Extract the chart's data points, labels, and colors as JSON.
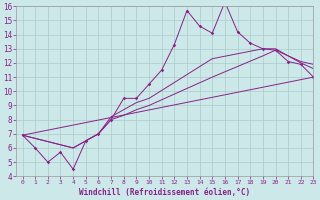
{
  "xlabel": "Windchill (Refroidissement éolien,°C)",
  "line_color": "#882288",
  "bg_color": "#cce8e8",
  "grid_color": "#aacccc",
  "xlim": [
    -0.5,
    23
  ],
  "ylim": [
    4,
    16
  ],
  "xticks": [
    0,
    1,
    2,
    3,
    4,
    5,
    6,
    7,
    8,
    9,
    10,
    11,
    12,
    13,
    14,
    15,
    16,
    17,
    18,
    19,
    20,
    21,
    22,
    23
  ],
  "yticks": [
    4,
    5,
    6,
    7,
    8,
    9,
    10,
    11,
    12,
    13,
    14,
    15,
    16
  ],
  "line1_x": [
    0,
    1,
    2,
    3,
    4,
    5,
    6,
    7,
    8,
    9,
    10,
    11,
    12,
    13,
    14,
    15,
    16,
    17,
    18,
    19,
    20,
    21,
    22,
    23
  ],
  "line1_y": [
    6.9,
    6.0,
    5.0,
    5.7,
    4.5,
    6.5,
    7.0,
    8.0,
    9.5,
    9.5,
    10.5,
    11.5,
    13.3,
    15.7,
    14.6,
    14.1,
    16.3,
    14.2,
    13.4,
    13.0,
    12.9,
    12.1,
    11.9,
    11.0
  ],
  "line2_x": [
    0,
    23
  ],
  "line2_y": [
    6.9,
    11.0
  ],
  "line3_x": [
    0,
    4,
    5,
    6,
    7,
    8,
    9,
    10,
    15,
    19,
    20,
    22,
    23
  ],
  "line3_y": [
    6.9,
    6.0,
    6.5,
    7.0,
    8.0,
    8.3,
    8.7,
    9.0,
    11.0,
    12.5,
    12.9,
    12.1,
    11.9
  ],
  "line4_x": [
    0,
    4,
    5,
    6,
    7,
    8,
    9,
    10,
    15,
    19,
    20,
    22,
    23
  ],
  "line4_y": [
    6.9,
    6.0,
    6.5,
    7.0,
    8.2,
    8.7,
    9.2,
    9.5,
    12.3,
    13.0,
    13.0,
    12.0,
    11.6
  ]
}
